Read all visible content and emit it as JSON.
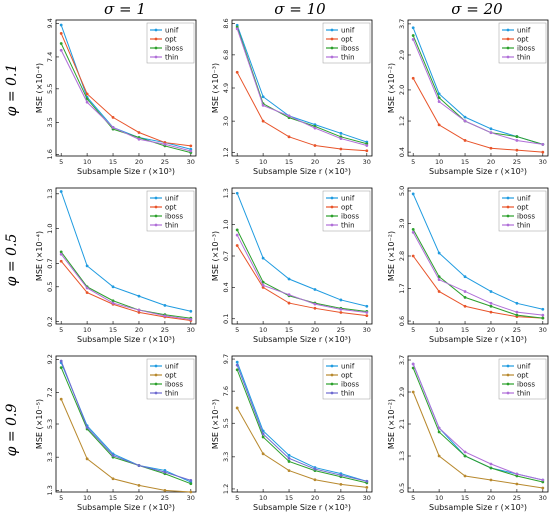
{
  "figure": {
    "col_titles": [
      "σ = 1",
      "σ = 10",
      "σ = 20"
    ],
    "row_labels": [
      "φ = 0.1",
      "φ = 0.5",
      "φ = 0.9"
    ]
  },
  "chart_data": [
    {
      "type": "line",
      "row": 0,
      "col": 0,
      "xlabel": "Subsample Size r (×10³)",
      "ylabel": "MSE (×10⁻⁴)",
      "x": [
        5,
        10,
        15,
        20,
        25,
        30
      ],
      "xticks": [
        5,
        10,
        15,
        20,
        25,
        30
      ],
      "yticks": [
        "1.6",
        "3.5",
        "5.5",
        "7.4",
        "9.4"
      ],
      "ylim": [
        1.5,
        9.6
      ],
      "series": [
        {
          "name": "unif",
          "color": "#1f9be0",
          "values": [
            9.3,
            5.0,
            3.2,
            2.6,
            2.3,
            1.9
          ]
        },
        {
          "name": "opt",
          "color": "#e8542a",
          "values": [
            8.8,
            5.2,
            3.8,
            2.9,
            2.3,
            2.1
          ]
        },
        {
          "name": "iboss",
          "color": "#2ca02c",
          "values": [
            8.2,
            4.9,
            3.1,
            2.6,
            2.1,
            1.7
          ]
        },
        {
          "name": "thin",
          "color": "#b06fd8",
          "values": [
            7.8,
            4.7,
            3.2,
            2.5,
            2.2,
            1.8
          ]
        }
      ],
      "legend": "top-right"
    },
    {
      "type": "line",
      "row": 0,
      "col": 1,
      "xlabel": "Subsample Size r (×10³)",
      "ylabel": "MSE (×10⁻³)",
      "x": [
        5,
        10,
        15,
        20,
        25,
        30
      ],
      "xticks": [
        5,
        10,
        15,
        20,
        25,
        30
      ],
      "yticks": [
        "1.2",
        "3.0",
        "4.9",
        "6.8",
        "8.6"
      ],
      "ylim": [
        1.0,
        8.8
      ],
      "series": [
        {
          "name": "unif",
          "color": "#1f9be0",
          "values": [
            8.5,
            4.4,
            3.3,
            2.8,
            2.3,
            1.8
          ]
        },
        {
          "name": "opt",
          "color": "#e8542a",
          "values": [
            5.8,
            3.0,
            2.1,
            1.6,
            1.4,
            1.3
          ]
        },
        {
          "name": "iboss",
          "color": "#2ca02c",
          "values": [
            8.4,
            4.0,
            3.2,
            2.7,
            2.1,
            1.7
          ]
        },
        {
          "name": "thin",
          "color": "#b06fd8",
          "values": [
            8.3,
            3.9,
            3.3,
            2.6,
            2.0,
            1.6
          ]
        }
      ],
      "legend": "top-right"
    },
    {
      "type": "line",
      "row": 0,
      "col": 2,
      "xlabel": "Subsample Size r (×10³)",
      "ylabel": "MSE (×10⁻²)",
      "x": [
        5,
        10,
        15,
        20,
        25,
        30
      ],
      "xticks": [
        5,
        10,
        15,
        20,
        25,
        30
      ],
      "yticks": [
        "0.4",
        "1.2",
        "2.0",
        "2.9",
        "3.7"
      ],
      "ylim": [
        0.3,
        3.8
      ],
      "series": [
        {
          "name": "unif",
          "color": "#1f9be0",
          "values": [
            3.6,
            1.9,
            1.3,
            1.0,
            0.8,
            0.6
          ]
        },
        {
          "name": "opt",
          "color": "#e8542a",
          "values": [
            2.3,
            1.1,
            0.7,
            0.5,
            0.45,
            0.4
          ]
        },
        {
          "name": "iboss",
          "color": "#2ca02c",
          "values": [
            3.4,
            1.8,
            1.2,
            0.9,
            0.8,
            0.6
          ]
        },
        {
          "name": "thin",
          "color": "#b06fd8",
          "values": [
            3.3,
            1.7,
            1.2,
            0.9,
            0.7,
            0.6
          ]
        }
      ],
      "legend": "top-right"
    },
    {
      "type": "line",
      "row": 1,
      "col": 0,
      "xlabel": "Subsample Size r (×10³)",
      "ylabel": "MSE (×10⁻⁴)",
      "x": [
        5,
        10,
        15,
        20,
        25,
        30
      ],
      "xticks": [
        5,
        10,
        15,
        20,
        25,
        30
      ],
      "yticks": [
        "0.2",
        "0.5",
        "0.7",
        "1.0",
        "1.3"
      ],
      "ylim": [
        0.18,
        1.35
      ],
      "series": [
        {
          "name": "unif",
          "color": "#1f9be0",
          "values": [
            1.32,
            0.68,
            0.5,
            0.42,
            0.34,
            0.29
          ]
        },
        {
          "name": "opt",
          "color": "#e8542a",
          "values": [
            0.72,
            0.45,
            0.35,
            0.28,
            0.24,
            0.21
          ]
        },
        {
          "name": "iboss",
          "color": "#2ca02c",
          "values": [
            0.8,
            0.5,
            0.38,
            0.3,
            0.26,
            0.23
          ]
        },
        {
          "name": "thin",
          "color": "#b06fd8",
          "values": [
            0.78,
            0.49,
            0.36,
            0.3,
            0.25,
            0.22
          ]
        }
      ],
      "legend": "top-right"
    },
    {
      "type": "line",
      "row": 1,
      "col": 1,
      "xlabel": "Subsample Size r (×10³)",
      "ylabel": "MSE (×10⁻³)",
      "x": [
        5,
        10,
        15,
        20,
        25,
        30
      ],
      "xticks": [
        5,
        10,
        15,
        20,
        25,
        30
      ],
      "yticks": [
        "0.1",
        "0.4",
        "0.7",
        "1.0",
        "1.3"
      ],
      "ylim": [
        0.05,
        1.35
      ],
      "series": [
        {
          "name": "unif",
          "color": "#1f9be0",
          "values": [
            1.3,
            0.68,
            0.48,
            0.38,
            0.28,
            0.22
          ]
        },
        {
          "name": "opt",
          "color": "#e8542a",
          "values": [
            0.8,
            0.4,
            0.25,
            0.2,
            0.16,
            0.13
          ]
        },
        {
          "name": "iboss",
          "color": "#2ca02c",
          "values": [
            0.95,
            0.45,
            0.32,
            0.25,
            0.2,
            0.17
          ]
        },
        {
          "name": "thin",
          "color": "#b06fd8",
          "values": [
            0.9,
            0.42,
            0.33,
            0.24,
            0.19,
            0.16
          ]
        }
      ],
      "legend": "top-right"
    },
    {
      "type": "line",
      "row": 1,
      "col": 2,
      "xlabel": "Subsample Size r (×10³)",
      "ylabel": "MSE (×10⁻²)",
      "x": [
        5,
        10,
        15,
        20,
        25,
        30
      ],
      "xticks": [
        5,
        10,
        15,
        20,
        25,
        30
      ],
      "yticks": [
        "0.6",
        "1.7",
        "2.8",
        "3.9",
        "5.0"
      ],
      "ylim": [
        0.5,
        5.1
      ],
      "series": [
        {
          "name": "unif",
          "color": "#1f9be0",
          "values": [
            4.9,
            2.9,
            2.1,
            1.6,
            1.2,
            1.0
          ]
        },
        {
          "name": "opt",
          "color": "#e8542a",
          "values": [
            2.8,
            1.6,
            1.1,
            0.9,
            0.75,
            0.7
          ]
        },
        {
          "name": "iboss",
          "color": "#2ca02c",
          "values": [
            3.7,
            2.1,
            1.4,
            1.1,
            0.8,
            0.7
          ]
        },
        {
          "name": "thin",
          "color": "#b06fd8",
          "values": [
            3.6,
            2.0,
            1.6,
            1.2,
            0.9,
            0.8
          ]
        }
      ],
      "legend": "top-right"
    },
    {
      "type": "line",
      "row": 2,
      "col": 0,
      "xlabel": "Subsample Size r (×10³)",
      "ylabel": "MSE (×10⁻⁵)",
      "x": [
        5,
        10,
        15,
        20,
        25,
        30
      ],
      "xticks": [
        5,
        10,
        15,
        20,
        25,
        30
      ],
      "yticks": [
        "1.3",
        "3.3",
        "5.3",
        "7.2",
        "9.2"
      ],
      "ylim": [
        1.2,
        9.4
      ],
      "series": [
        {
          "name": "unif",
          "color": "#1f9be0",
          "values": [
            9.0,
            5.2,
            3.5,
            2.8,
            2.5,
            1.8
          ]
        },
        {
          "name": "opt",
          "color": "#b8892e",
          "values": [
            6.8,
            3.2,
            2.0,
            1.6,
            1.3,
            1.2
          ]
        },
        {
          "name": "iboss",
          "color": "#2ca02c",
          "values": [
            8.7,
            5.0,
            3.3,
            2.8,
            2.3,
            1.7
          ]
        },
        {
          "name": "thin",
          "color": "#6e6ad0",
          "values": [
            9.1,
            5.1,
            3.4,
            2.8,
            2.4,
            1.9
          ]
        }
      ],
      "legend": "top-right"
    },
    {
      "type": "line",
      "row": 2,
      "col": 1,
      "xlabel": "Subsample Size r (×10³)",
      "ylabel": "MSE (×10⁻³)",
      "x": [
        5,
        10,
        15,
        20,
        25,
        30
      ],
      "xticks": [
        5,
        10,
        15,
        20,
        25,
        30
      ],
      "yticks": [
        "1.2",
        "3.3",
        "5.5",
        "7.6",
        "9.7"
      ],
      "ylim": [
        1.0,
        9.9
      ],
      "series": [
        {
          "name": "unif",
          "color": "#1f9be0",
          "values": [
            9.5,
            5.0,
            3.4,
            2.6,
            2.2,
            1.7
          ]
        },
        {
          "name": "opt",
          "color": "#b8892e",
          "values": [
            6.5,
            3.5,
            2.4,
            1.8,
            1.5,
            1.3
          ]
        },
        {
          "name": "iboss",
          "color": "#2ca02c",
          "values": [
            9.0,
            4.6,
            3.0,
            2.4,
            2.0,
            1.6
          ]
        },
        {
          "name": "thin",
          "color": "#6e6ad0",
          "values": [
            9.3,
            4.8,
            3.2,
            2.5,
            2.1,
            1.7
          ]
        }
      ],
      "legend": "top-right"
    },
    {
      "type": "line",
      "row": 2,
      "col": 2,
      "xlabel": "Subsample Size r (×10³)",
      "ylabel": "MSE (×10⁻²)",
      "x": [
        5,
        10,
        15,
        20,
        25,
        30
      ],
      "xticks": [
        5,
        10,
        15,
        20,
        25,
        30
      ],
      "yticks": [
        "0.5",
        "1.3",
        "2.1",
        "2.9",
        "3.7"
      ],
      "ylim": [
        0.4,
        3.8
      ],
      "series": [
        {
          "name": "unif",
          "color": "#1f9be0",
          "values": [
            3.6,
            2.0,
            1.3,
            1.0,
            0.85,
            0.7
          ]
        },
        {
          "name": "opt",
          "color": "#b8892e",
          "values": [
            2.9,
            1.3,
            0.8,
            0.7,
            0.6,
            0.5
          ]
        },
        {
          "name": "iboss",
          "color": "#2ca02c",
          "values": [
            3.5,
            1.9,
            1.3,
            1.0,
            0.8,
            0.65
          ]
        },
        {
          "name": "thin",
          "color": "#b06fd8",
          "values": [
            3.6,
            2.0,
            1.4,
            1.1,
            0.85,
            0.7
          ]
        }
      ],
      "legend": "top-right"
    }
  ]
}
